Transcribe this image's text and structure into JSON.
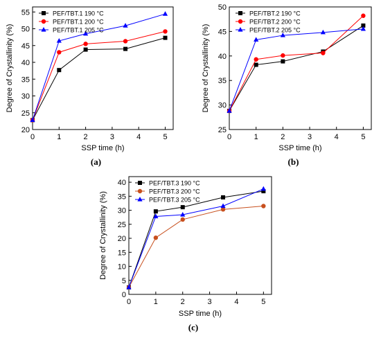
{
  "chart_data": [
    {
      "type": "line",
      "panel_label": "(a)",
      "xlabel": "SSP time (h)",
      "ylabel": "Degree of Crystallinity (%)",
      "xlim": [
        0,
        5.3
      ],
      "ylim": [
        20,
        56.5
      ],
      "xticks": [
        0,
        1,
        2,
        3,
        4,
        5
      ],
      "yticks": [
        20,
        25,
        30,
        35,
        40,
        45,
        50,
        55
      ],
      "legend_position": "top-left",
      "x": [
        0,
        1,
        2,
        3.5,
        5
      ],
      "series": [
        {
          "name": "PEF/TBT.1 190 °C",
          "color": "#000000",
          "marker": "square",
          "values": [
            22.8,
            37.7,
            43.8,
            44.0,
            47.3
          ]
        },
        {
          "name": "PEF/TBT.1 200 °C",
          "color": "#ff0000",
          "marker": "circle",
          "values": [
            22.8,
            43.0,
            45.5,
            46.3,
            49.2
          ]
        },
        {
          "name": "PEF/TBT.1 205 °C",
          "color": "#0000ff",
          "marker": "triangle",
          "values": [
            22.8,
            46.4,
            48.5,
            50.9,
            54.4
          ]
        }
      ]
    },
    {
      "type": "line",
      "panel_label": "(b)",
      "xlabel": "SSP time (h)",
      "ylabel": "Degree of Crystallinity (%)",
      "xlim": [
        0,
        5.3
      ],
      "ylim": [
        25,
        50
      ],
      "xticks": [
        0,
        1,
        2,
        3,
        4,
        5
      ],
      "yticks": [
        25,
        30,
        35,
        40,
        45,
        50
      ],
      "legend_position": "top-left",
      "x": [
        0,
        1,
        2,
        3.5,
        5
      ],
      "series": [
        {
          "name": "PEF/TBT.2 190 °C",
          "color": "#000000",
          "marker": "square",
          "values": [
            28.8,
            38.2,
            38.9,
            40.9,
            46.2
          ]
        },
        {
          "name": "PEF/TBT.2 200 °C",
          "color": "#ff0000",
          "marker": "circle",
          "values": [
            28.8,
            39.3,
            40.1,
            40.6,
            48.2
          ]
        },
        {
          "name": "PEF/TBT.2 205 °C",
          "color": "#0000ff",
          "marker": "triangle",
          "values": [
            28.8,
            43.3,
            44.2,
            44.8,
            45.5
          ]
        }
      ]
    },
    {
      "type": "line",
      "panel_label": "(c)",
      "xlabel": "SSP time (h)",
      "ylabel": "Degree of Crystallinity (%)",
      "xlim": [
        0,
        5.3
      ],
      "ylim": [
        0,
        42
      ],
      "xticks": [
        0,
        1,
        2,
        3,
        4,
        5
      ],
      "yticks": [
        0,
        5,
        10,
        15,
        20,
        25,
        30,
        35,
        40
      ],
      "legend_position": "top-left",
      "x": [
        0,
        1,
        2,
        3.5,
        5
      ],
      "series": [
        {
          "name": "PEF/TBT.3 190 °C",
          "color": "#000000",
          "marker": "square",
          "values": [
            2.5,
            29.6,
            31.1,
            34.6,
            36.8
          ]
        },
        {
          "name": "PEF/TBT.3 200 °C",
          "color": "#c8501e",
          "marker": "circle",
          "values": [
            2.5,
            20.2,
            26.7,
            30.3,
            31.5
          ]
        },
        {
          "name": "PEF/TBT.3 205 °C",
          "color": "#0000ff",
          "marker": "triangle",
          "values": [
            2.5,
            27.8,
            28.4,
            31.5,
            37.6
          ]
        }
      ]
    }
  ]
}
